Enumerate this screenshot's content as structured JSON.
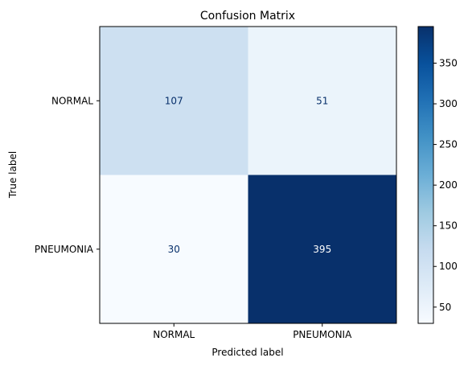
{
  "chart_data": {
    "type": "heatmap",
    "title": "Confusion Matrix",
    "xlabel": "Predicted label",
    "ylabel": "True label",
    "x_categories": [
      "NORMAL",
      "PNEUMONIA"
    ],
    "y_categories": [
      "NORMAL",
      "PNEUMONIA"
    ],
    "matrix": [
      [
        107,
        51
      ],
      [
        30,
        395
      ]
    ],
    "colormap": "Blues",
    "colorbar": {
      "range": [
        30,
        395
      ],
      "ticks": [
        "50",
        "100",
        "150",
        "200",
        "250",
        "300",
        "350"
      ]
    }
  }
}
